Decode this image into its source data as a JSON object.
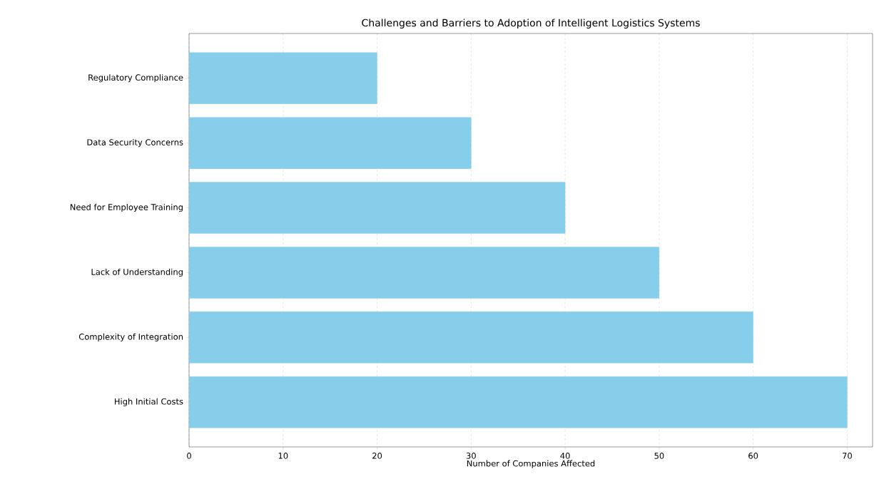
{
  "chart_data": {
    "type": "bar",
    "orientation": "horizontal",
    "title": "Challenges and Barriers to Adoption of Intelligent Logistics Systems",
    "xlabel": "Number of Companies Affected",
    "categories": [
      "Regulatory Compliance",
      "Data Security Concerns",
      "Need for Employee Training",
      "Lack of Understanding",
      "Complexity of Integration",
      "High Initial Costs"
    ],
    "values": [
      20,
      30,
      40,
      50,
      60,
      70
    ],
    "color": "#87ceeb",
    "xlim": [
      0,
      72.7
    ],
    "xticks": [
      0,
      10,
      20,
      30,
      40,
      50,
      60,
      70
    ],
    "grid": "x"
  }
}
